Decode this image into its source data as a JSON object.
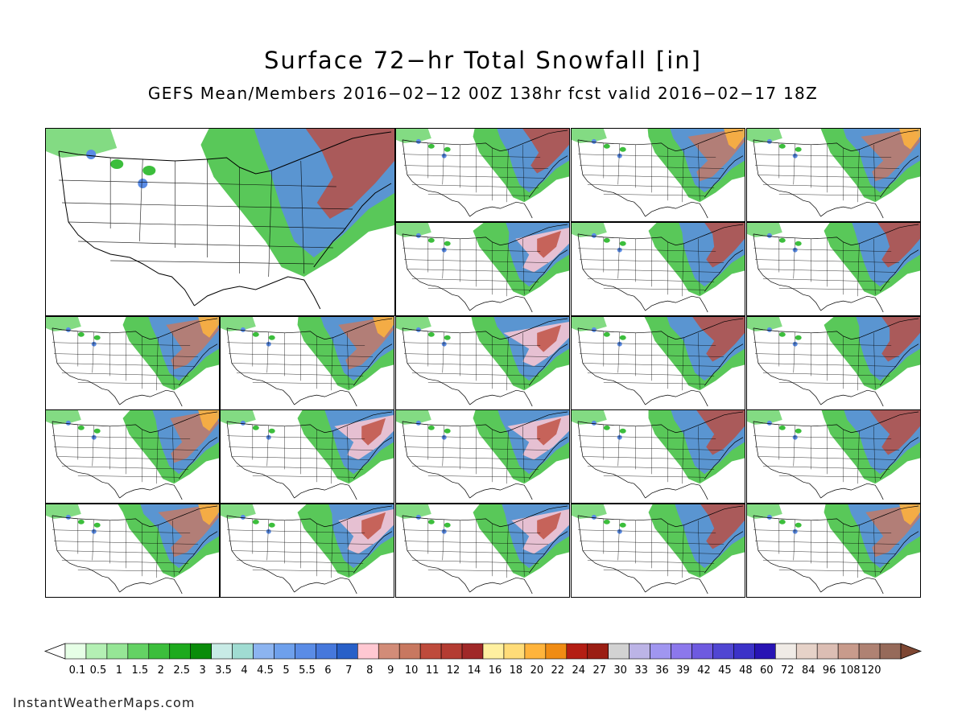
{
  "title": "Surface 72−hr Total Snowfall [in]",
  "subtitle": "GEFS Mean/Members 2016−02−12 00Z 138hr fcst valid 2016−02−17 18Z",
  "credit": "InstantWeatherMaps.com",
  "panels": {
    "mean": "ensemble-mean",
    "members": 20
  },
  "legend": {
    "tick_labels": [
      "0.1",
      "0.5",
      "1",
      "1.5",
      "2",
      "2.5",
      "3",
      "3.5",
      "4",
      "4.5",
      "5",
      "5.5",
      "6",
      "7",
      "8",
      "9",
      "10",
      "11",
      "12",
      "14",
      "16",
      "18",
      "20",
      "22",
      "24",
      "27",
      "30",
      "33",
      "36",
      "39",
      "42",
      "45",
      "48",
      "60",
      "72",
      "84",
      "96",
      "108",
      "120"
    ],
    "colors": [
      "#e6ffe6",
      "#b4f0b4",
      "#96e696",
      "#64d264",
      "#3cbe3c",
      "#1eaa1e",
      "#0a8c0a",
      "#c8ebe6",
      "#a0dcd2",
      "#8cb4f0",
      "#6ea0ec",
      "#5a8ce6",
      "#4678dc",
      "#2860c8",
      "#ffc8d2",
      "#d28c78",
      "#c87860",
      "#be4b3c",
      "#b43c32",
      "#a02828",
      "#fff0a0",
      "#ffdc78",
      "#ffb43c",
      "#f08c14",
      "#b41e14",
      "#9b1e14",
      "#d2d2d2",
      "#bcb4e6",
      "#a096f0",
      "#8c78ec",
      "#6e5ae0",
      "#5046d2",
      "#3c32c8",
      "#2814b4",
      "#f0ebe6",
      "#e6d2c8",
      "#dcbeb4",
      "#c89b8c",
      "#af8273",
      "#966a5a"
    ],
    "underflow_color": "#ffffff",
    "overflow_color": "#7d4632"
  }
}
